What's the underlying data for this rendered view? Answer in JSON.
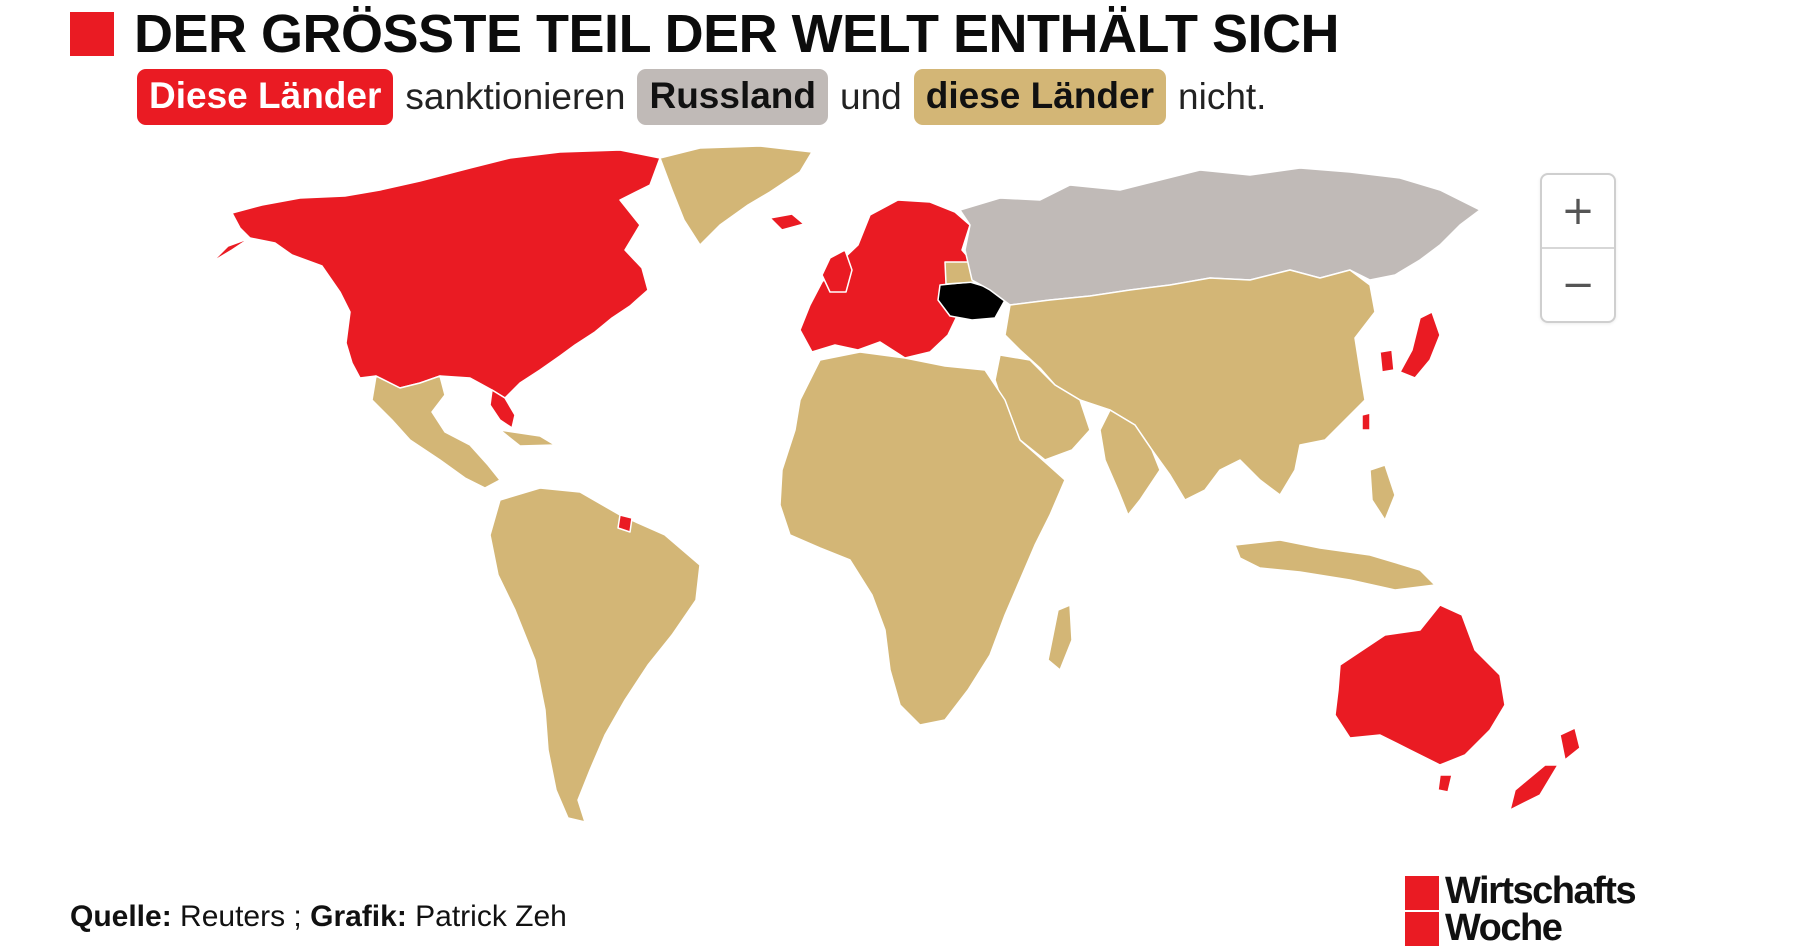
{
  "title": "DER GRÖSSTE TEIL DER WELT ENTHÄLT SICH",
  "subtitle": {
    "pill_sanctioning": "Diese Länder",
    "text_1": "sanktionieren",
    "pill_russia": "Russland",
    "text_2": "und",
    "pill_abstaining": "diese Länder",
    "text_3": "nicht."
  },
  "colors": {
    "sanctioning": "#ea1b23",
    "russia": "#c0bab7",
    "abstaining": "#d3b676",
    "ukraine": "#000000"
  },
  "zoom": {
    "in_label": "+",
    "out_label": "−"
  },
  "source": {
    "source_label": "Quelle:",
    "source_value": "Reuters ;",
    "graphic_label": "Grafik:",
    "graphic_value": "Patrick Zeh"
  },
  "logo": {
    "line1": "Wirtschafts",
    "line2": "Woche"
  }
}
